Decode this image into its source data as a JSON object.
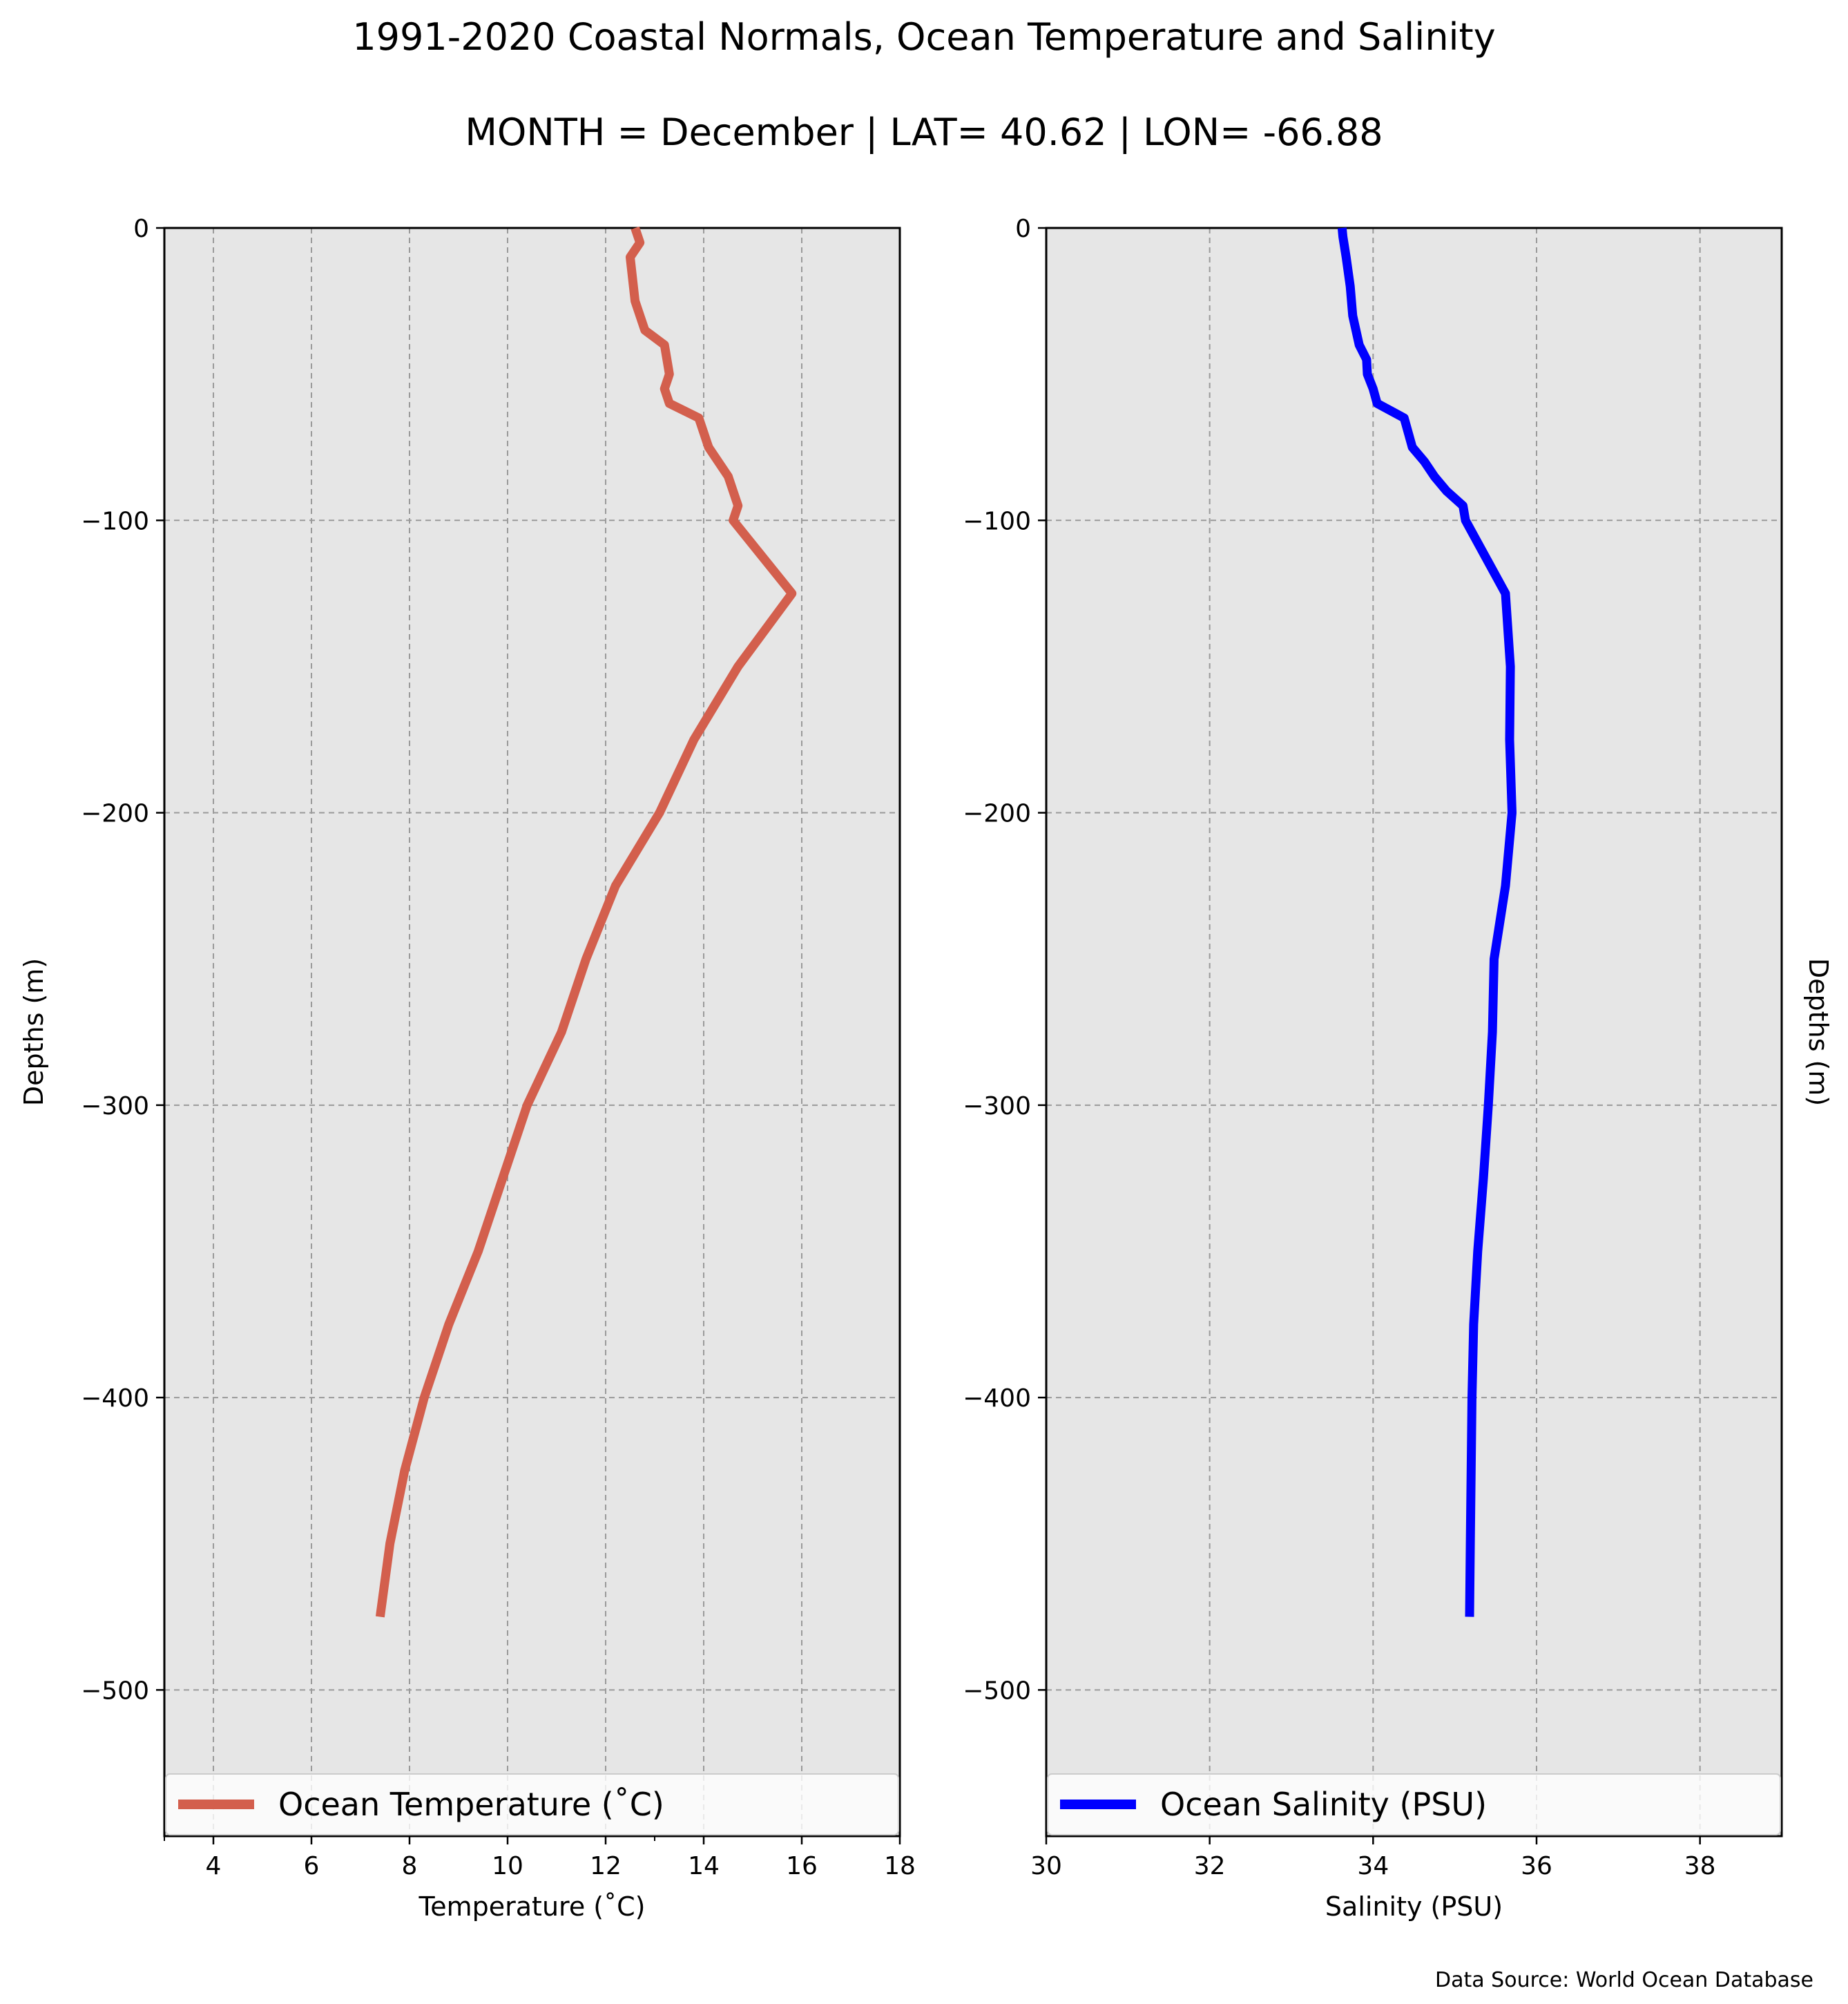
{
  "title": "1991-2020 Coastal Normals, Ocean Temperature and Salinity",
  "subtitle": "MONTH = December | LAT= 40.62 | LON= -66.88",
  "source_note": "Data Source: World Ocean Database",
  "chart_data": [
    {
      "type": "line",
      "xlabel": "Temperature (˚C)",
      "ylabel": "Depths (m)",
      "xlim": [
        3,
        18
      ],
      "ylim": [
        -550,
        0
      ],
      "xticks": [
        4,
        6,
        8,
        10,
        12,
        14,
        16,
        18
      ],
      "xtick_labels": [
        "4",
        "6",
        "8",
        "10",
        "12",
        "14",
        "16",
        "18"
      ],
      "xticks_minor": [
        3,
        13
      ],
      "yticks": [
        0,
        -100,
        -200,
        -300,
        -400,
        -500
      ],
      "ytick_labels": [
        "0",
        "−100",
        "−200",
        "−300",
        "−400",
        "−500"
      ],
      "grid": true,
      "legend": "bottom",
      "series": [
        {
          "name": "Ocean Temperature (˚C)",
          "color": "#d35f4d",
          "x": [
            12.6,
            12.7,
            12.5,
            12.6,
            12.8,
            13.2,
            13.3,
            13.2,
            13.3,
            13.9,
            14.1,
            14.5,
            14.6,
            14.7,
            14.6,
            15.8,
            14.7,
            13.8,
            13.1,
            12.2,
            11.6,
            11.1,
            10.4,
            9.9,
            9.4,
            8.8,
            8.3,
            7.9,
            7.6,
            7.4
          ],
          "y": [
            0,
            -5,
            -10,
            -25,
            -35,
            -40,
            -50,
            -55,
            -60,
            -65,
            -75,
            -85,
            -90,
            -95,
            -100,
            -125,
            -150,
            -175,
            -200,
            -225,
            -250,
            -275,
            -300,
            -325,
            -350,
            -375,
            -400,
            -425,
            -450,
            -475
          ]
        }
      ]
    },
    {
      "type": "line",
      "xlabel": "Salinity (PSU)",
      "ylabel": "Depths (m)",
      "xlim": [
        30,
        39
      ],
      "ylim": [
        -550,
        0
      ],
      "xticks": [
        30,
        32,
        34,
        36,
        38
      ],
      "xtick_labels": [
        "30",
        "32",
        "34",
        "36",
        "38"
      ],
      "yticks": [
        0,
        -100,
        -200,
        -300,
        -400,
        -500
      ],
      "ytick_labels": [
        "0",
        "−100",
        "−200",
        "−300",
        "−400",
        "−500"
      ],
      "grid": true,
      "legend": "bottom",
      "series": [
        {
          "name": "Ocean Salinity (PSU)",
          "color": "#0000ff",
          "x": [
            33.62,
            33.63,
            33.67,
            33.72,
            33.75,
            33.83,
            33.92,
            33.93,
            34.0,
            34.05,
            34.38,
            34.48,
            34.63,
            34.75,
            34.9,
            35.1,
            35.13,
            35.62,
            35.68,
            35.67,
            35.7,
            35.62,
            35.48,
            35.46,
            35.41,
            35.35,
            35.28,
            35.23,
            35.21,
            35.19,
            35.18
          ],
          "y": [
            0,
            -3,
            -10,
            -20,
            -30,
            -40,
            -45,
            -50,
            -55,
            -60,
            -65,
            -75,
            -80,
            -85,
            -90,
            -95,
            -100,
            -125,
            -150,
            -175,
            -200,
            -225,
            -250,
            -275,
            -300,
            -325,
            -350,
            -375,
            -400,
            -450,
            -475
          ]
        }
      ]
    }
  ]
}
